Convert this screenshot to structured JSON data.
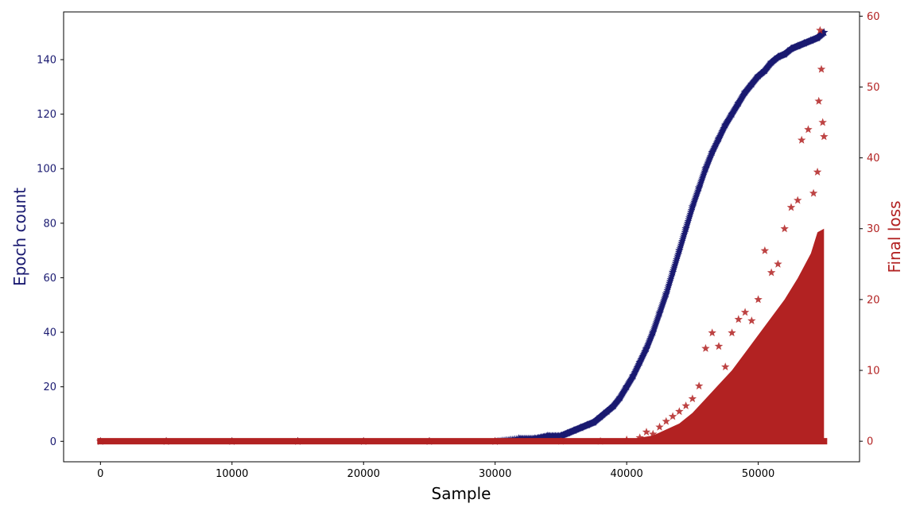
{
  "chart_data": {
    "type": "scatter",
    "xlabel": "Sample",
    "ylabel_left": "Epoch count",
    "ylabel_right": "Final loss",
    "xlim": [
      -2800,
      57700
    ],
    "ylim_left": [
      -7.5,
      157.5
    ],
    "ylim_right": [
      -2.9,
      60.6
    ],
    "x_ticks": [
      0,
      10000,
      20000,
      30000,
      40000,
      50000
    ],
    "y_left_ticks": [
      0,
      20,
      40,
      60,
      80,
      100,
      120,
      140
    ],
    "y_right_ticks": [
      0,
      10,
      20,
      30,
      40,
      50,
      60
    ],
    "grid": false,
    "marker": "star",
    "colors": {
      "epoch": "#191970",
      "loss": "#b22222",
      "axis": "#000000"
    },
    "series": [
      {
        "axis": "left",
        "color": "#191970",
        "points": [
          [
            0,
            0
          ],
          [
            5000,
            0
          ],
          [
            10000,
            0
          ],
          [
            15000,
            0
          ],
          [
            20000,
            0
          ],
          [
            25000,
            0
          ],
          [
            30000,
            0
          ],
          [
            31800,
            1
          ],
          [
            33000,
            1
          ],
          [
            34000,
            2
          ],
          [
            35000,
            2
          ],
          [
            35500,
            3
          ],
          [
            36000,
            4
          ],
          [
            36500,
            5
          ],
          [
            37000,
            6
          ],
          [
            37500,
            7
          ],
          [
            38000,
            9
          ],
          [
            38500,
            11
          ],
          [
            39000,
            13
          ],
          [
            39500,
            16
          ],
          [
            40000,
            20
          ],
          [
            40500,
            24
          ],
          [
            41000,
            29
          ],
          [
            41500,
            34
          ],
          [
            42000,
            40
          ],
          [
            42500,
            47
          ],
          [
            43000,
            54
          ],
          [
            43500,
            62
          ],
          [
            44000,
            70
          ],
          [
            44500,
            78
          ],
          [
            45000,
            86
          ],
          [
            45500,
            93
          ],
          [
            46000,
            100
          ],
          [
            46500,
            106
          ],
          [
            47000,
            111
          ],
          [
            47500,
            116
          ],
          [
            48000,
            120
          ],
          [
            48500,
            124
          ],
          [
            49000,
            128
          ],
          [
            49500,
            131
          ],
          [
            50000,
            134
          ],
          [
            50500,
            136
          ],
          [
            51000,
            139
          ],
          [
            51500,
            141
          ],
          [
            52000,
            142
          ],
          [
            52500,
            144
          ],
          [
            53000,
            145
          ],
          [
            53500,
            146
          ],
          [
            54000,
            147
          ],
          [
            54500,
            148
          ],
          [
            55000,
            150
          ]
        ]
      },
      {
        "axis": "right",
        "color": "#b22222",
        "points": [
          [
            0,
            0
          ],
          [
            5000,
            0
          ],
          [
            10000,
            0
          ],
          [
            15000,
            0
          ],
          [
            20000,
            0
          ],
          [
            25000,
            0
          ],
          [
            30000,
            0
          ],
          [
            35000,
            0
          ],
          [
            38000,
            0
          ],
          [
            40000,
            0.2
          ],
          [
            41000,
            0.5
          ],
          [
            41500,
            1.3
          ],
          [
            42000,
            1
          ],
          [
            42500,
            2
          ],
          [
            43000,
            2.8
          ],
          [
            43500,
            3.5
          ],
          [
            44000,
            4.2
          ],
          [
            44500,
            5
          ],
          [
            45000,
            6
          ],
          [
            45500,
            7.8
          ],
          [
            46000,
            13.1
          ],
          [
            46500,
            15.3
          ],
          [
            47000,
            13.4
          ],
          [
            47500,
            10.5
          ],
          [
            48000,
            15.3
          ],
          [
            48500,
            17.2
          ],
          [
            49000,
            18.2
          ],
          [
            49500,
            17
          ],
          [
            50000,
            20
          ],
          [
            50500,
            26.9
          ],
          [
            51000,
            23.8
          ],
          [
            51500,
            25
          ],
          [
            52000,
            30
          ],
          [
            52500,
            33
          ],
          [
            53000,
            34
          ],
          [
            53300,
            42.5
          ],
          [
            53800,
            44
          ],
          [
            54200,
            35
          ],
          [
            54500,
            38
          ],
          [
            54600,
            48
          ],
          [
            54700,
            58
          ],
          [
            54800,
            52.5
          ],
          [
            54900,
            45
          ],
          [
            55000,
            43
          ]
        ]
      }
    ]
  }
}
